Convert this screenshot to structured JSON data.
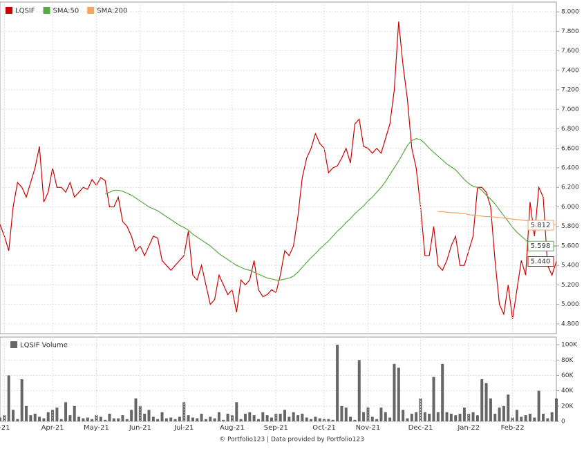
{
  "chart_data": [
    {
      "type": "line",
      "ylim": [
        4.7,
        8.1
      ],
      "yticks": [
        {
          "value": 4.8,
          "label": "4.800"
        },
        {
          "value": 5.0,
          "label": "5.000"
        },
        {
          "value": 5.2,
          "label": "5.200"
        },
        {
          "value": 5.4,
          "label": "5.400"
        },
        {
          "value": 5.6,
          "label": "5.600"
        },
        {
          "value": 5.8,
          "label": "5.800"
        },
        {
          "value": 6.0,
          "label": "6.000"
        },
        {
          "value": 6.2,
          "label": "6.200"
        },
        {
          "value": 6.4,
          "label": "6.400"
        },
        {
          "value": 6.6,
          "label": "6.600"
        },
        {
          "value": 6.8,
          "label": "6.800"
        },
        {
          "value": 7.0,
          "label": "7.000"
        },
        {
          "value": 7.2,
          "label": "7.200"
        },
        {
          "value": 7.4,
          "label": "7.400"
        },
        {
          "value": 7.6,
          "label": "7.600"
        },
        {
          "value": 7.8,
          "label": "7.800"
        },
        {
          "value": 8.0,
          "label": "8.000"
        }
      ],
      "grid": true,
      "series": [
        {
          "name": "LQSIF",
          "color": "#cc0000",
          "last_label": "5.440",
          "values": [
            5.82,
            5.7,
            5.55,
            6.0,
            6.25,
            6.2,
            6.1,
            6.25,
            6.4,
            6.62,
            6.05,
            6.15,
            6.4,
            6.2,
            6.2,
            6.15,
            6.25,
            6.1,
            6.15,
            6.2,
            6.18,
            6.28,
            6.22,
            6.3,
            6.27,
            6.0,
            6.0,
            6.1,
            5.85,
            5.8,
            5.7,
            5.55,
            5.6,
            5.5,
            5.6,
            5.7,
            5.68,
            5.45,
            5.4,
            5.35,
            5.4,
            5.45,
            5.5,
            5.75,
            5.3,
            5.25,
            5.4,
            5.2,
            5.0,
            5.05,
            5.3,
            5.2,
            5.1,
            5.15,
            4.92,
            5.25,
            5.2,
            5.25,
            5.45,
            5.15,
            5.08,
            5.1,
            5.15,
            5.12,
            5.3,
            5.55,
            5.5,
            5.6,
            5.9,
            6.3,
            6.5,
            6.6,
            6.75,
            6.65,
            6.6,
            6.35,
            6.4,
            6.42,
            6.5,
            6.6,
            6.45,
            6.85,
            6.9,
            6.62,
            6.6,
            6.55,
            6.6,
            6.55,
            6.7,
            6.85,
            7.2,
            7.9,
            7.45,
            7.1,
            6.6,
            6.4,
            6.0,
            5.5,
            5.5,
            5.8,
            5.4,
            5.35,
            5.45,
            5.6,
            5.7,
            5.4,
            5.4,
            5.55,
            5.7,
            6.2,
            6.2,
            6.15,
            6.0,
            5.45,
            5.0,
            4.9,
            5.2,
            4.85,
            5.15,
            5.45,
            5.3,
            6.05,
            5.7,
            6.2,
            6.1,
            5.4,
            5.3,
            5.44
          ]
        },
        {
          "name": "SMA:50",
          "color": "#55aa44",
          "last_label": "5.598",
          "values": [
            null,
            null,
            null,
            null,
            null,
            null,
            null,
            null,
            null,
            null,
            null,
            null,
            null,
            null,
            null,
            null,
            null,
            null,
            null,
            null,
            null,
            null,
            null,
            null,
            6.13,
            6.15,
            6.17,
            6.17,
            6.16,
            6.14,
            6.12,
            6.09,
            6.06,
            6.03,
            6.0,
            5.98,
            5.96,
            5.93,
            5.9,
            5.87,
            5.84,
            5.81,
            5.79,
            5.76,
            5.72,
            5.69,
            5.66,
            5.63,
            5.6,
            5.56,
            5.52,
            5.49,
            5.46,
            5.43,
            5.4,
            5.38,
            5.36,
            5.35,
            5.33,
            5.31,
            5.29,
            5.27,
            5.26,
            5.25,
            5.25,
            5.26,
            5.27,
            5.29,
            5.33,
            5.38,
            5.43,
            5.48,
            5.52,
            5.57,
            5.61,
            5.65,
            5.7,
            5.75,
            5.79,
            5.84,
            5.88,
            5.93,
            5.97,
            6.01,
            6.06,
            6.1,
            6.15,
            6.2,
            6.26,
            6.33,
            6.4,
            6.47,
            6.55,
            6.63,
            6.68,
            6.7,
            6.69,
            6.65,
            6.6,
            6.56,
            6.52,
            6.48,
            6.44,
            6.41,
            6.38,
            6.33,
            6.28,
            6.24,
            6.21,
            6.2,
            6.17,
            6.12,
            6.08,
            6.03,
            5.97,
            5.91,
            5.85,
            5.79,
            5.74,
            5.7,
            5.66,
            5.62,
            5.6,
            5.59,
            5.6,
            5.6,
            5.6,
            5.598
          ]
        },
        {
          "name": "SMA:200",
          "color": "#f4a460",
          "last_label": "5.812",
          "values": [
            null,
            null,
            null,
            null,
            null,
            null,
            null,
            null,
            null,
            null,
            null,
            null,
            null,
            null,
            null,
            null,
            null,
            null,
            null,
            null,
            null,
            null,
            null,
            null,
            null,
            null,
            null,
            null,
            null,
            null,
            null,
            null,
            null,
            null,
            null,
            null,
            null,
            null,
            null,
            null,
            null,
            null,
            null,
            null,
            null,
            null,
            null,
            null,
            null,
            null,
            null,
            null,
            null,
            null,
            null,
            null,
            null,
            null,
            null,
            null,
            null,
            null,
            null,
            null,
            null,
            null,
            null,
            null,
            null,
            null,
            null,
            null,
            null,
            null,
            null,
            null,
            null,
            null,
            null,
            null,
            null,
            null,
            null,
            null,
            null,
            null,
            null,
            null,
            null,
            null,
            null,
            null,
            null,
            null,
            null,
            null,
            null,
            null,
            null,
            null,
            5.95,
            5.95,
            5.945,
            5.94,
            5.94,
            5.935,
            5.93,
            5.92,
            5.915,
            5.91,
            5.905,
            5.9,
            5.9,
            5.895,
            5.89,
            5.885,
            5.88,
            5.875,
            5.87,
            5.865,
            5.86,
            5.855,
            5.85,
            5.84,
            5.83,
            5.825,
            5.82,
            5.812
          ]
        }
      ]
    },
    {
      "type": "bar",
      "categories": [
        null,
        "-21",
        null,
        null,
        null,
        null,
        null,
        null,
        null,
        null,
        null,
        null,
        "Apr-21",
        null,
        null,
        null,
        null,
        null,
        null,
        null,
        null,
        null,
        "May-21",
        null,
        null,
        null,
        null,
        null,
        null,
        null,
        null,
        null,
        "Jun-21",
        null,
        null,
        null,
        null,
        null,
        null,
        null,
        null,
        null,
        "Jul-21",
        null,
        null,
        null,
        null,
        null,
        null,
        null,
        null,
        null,
        null,
        "Aug-21",
        null,
        null,
        null,
        null,
        null,
        null,
        null,
        null,
        null,
        "Sep-21",
        null,
        null,
        null,
        null,
        null,
        null,
        null,
        null,
        null,
        null,
        "Oct-21",
        null,
        null,
        null,
        null,
        null,
        null,
        null,
        null,
        null,
        "Nov-21",
        null,
        null,
        null,
        null,
        null,
        null,
        null,
        null,
        null,
        null,
        null,
        "Dec-21",
        null,
        null,
        null,
        null,
        null,
        null,
        null,
        null,
        null,
        null,
        "Jan-22",
        null,
        null,
        null,
        null,
        null,
        null,
        null,
        null,
        null,
        "Feb-22",
        null,
        null,
        null,
        null,
        null,
        null,
        null,
        null,
        null,
        null
      ],
      "ylim": [
        0,
        110000
      ],
      "yticks": [
        0,
        {
          "value": 20000,
          "label": "20K"
        },
        {
          "value": 40000,
          "label": "40K"
        },
        {
          "value": 60000,
          "label": "60K"
        },
        {
          "value": 80000,
          "label": "80K"
        },
        {
          "value": 100000,
          "label": "100K"
        }
      ],
      "grid": true,
      "series": [
        {
          "name": "LQSIF Volume",
          "color": "#666666",
          "values": [
            5000,
            8000,
            60000,
            15000,
            3000,
            55000,
            20000,
            8000,
            10000,
            6000,
            4000,
            12000,
            15000,
            18000,
            3000,
            25000,
            8000,
            20000,
            6000,
            4000,
            5000,
            3000,
            8000,
            6000,
            2000,
            10000,
            4000,
            4000,
            8000,
            3000,
            15000,
            30000,
            20000,
            10000,
            15000,
            6000,
            3000,
            12000,
            4000,
            5000,
            3000,
            6000,
            25000,
            8000,
            5000,
            4000,
            10000,
            3000,
            6000,
            4000,
            12000,
            2000,
            10000,
            8000,
            25000,
            3000,
            10000,
            12000,
            8000,
            3000,
            12000,
            8000,
            5000,
            10000,
            10000,
            15000,
            6000,
            12000,
            8000,
            10000,
            5000,
            3000,
            6000,
            4000,
            3000,
            3000,
            2000,
            100000,
            20000,
            18000,
            6000,
            2000,
            80000,
            12000,
            18000,
            6000,
            3000,
            18000,
            12000,
            5000,
            75000,
            70000,
            15000,
            4000,
            10000,
            12000,
            30000,
            12000,
            10000,
            58000,
            12000,
            75000,
            12000,
            10000,
            8000,
            10000,
            18000,
            10000,
            12000,
            8000,
            55000,
            50000,
            30000,
            10000,
            18000,
            20000,
            35000,
            5000,
            15000,
            6000,
            8000,
            10000,
            5000,
            40000,
            10000,
            4000,
            12000,
            30000
          ]
        }
      ]
    }
  ],
  "footer": "© Portfolio123 | Data provided by Portfolio123"
}
